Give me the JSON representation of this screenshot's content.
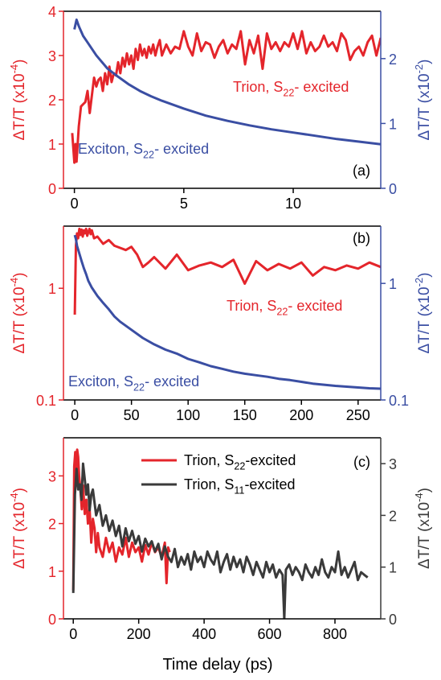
{
  "figure": {
    "xlabel": "Time delay (ps)",
    "colors": {
      "red": "#e4252b",
      "blue": "#3a4ea3",
      "dark": "#3a3a3a",
      "axis": "#000000"
    }
  },
  "chart_data": [
    {
      "type": "line",
      "panel_label": "(a)",
      "xlim": [
        -0.5,
        14
      ],
      "xticks": [
        0,
        5,
        10
      ],
      "xticklabels": [
        "0",
        "5",
        "10"
      ],
      "y_left": {
        "label": "ΔT/T (x10",
        "exp": "-4",
        "label_end": ")",
        "lim": [
          0,
          4
        ],
        "scale": "linear",
        "ticks": [
          0,
          1,
          2,
          3,
          4
        ],
        "ticklabels": [
          "0",
          "1",
          "2",
          "3",
          "4"
        ],
        "color": "red"
      },
      "y_right": {
        "label": "ΔT/T (x10",
        "exp": "-2",
        "label_end": ")",
        "lim": [
          0,
          2.73
        ],
        "scale": "linear",
        "ticks": [
          0,
          1,
          2
        ],
        "ticklabels": [
          "0",
          "1",
          "2"
        ],
        "color": "blue"
      },
      "annotations": [
        {
          "id": "trion",
          "text": "Trion, S",
          "sub": "22",
          "tail": "- excited",
          "color": "red"
        },
        {
          "id": "exciton",
          "text": "Exciton, S",
          "sub": "22",
          "tail": "- excited",
          "color": "blue"
        }
      ],
      "series": [
        {
          "name": "Trion, S22- excited",
          "axis": "left",
          "color": "red",
          "x": [
            -0.1,
            0.0,
            0.05,
            0.1,
            0.2,
            0.3,
            0.4,
            0.5,
            0.6,
            0.7,
            0.8,
            0.9,
            1.0,
            1.1,
            1.2,
            1.3,
            1.4,
            1.5,
            1.6,
            1.7,
            1.8,
            1.9,
            2.0,
            2.1,
            2.2,
            2.3,
            2.4,
            2.5,
            2.6,
            2.7,
            2.8,
            2.9,
            3.0,
            3.1,
            3.2,
            3.3,
            3.4,
            3.5,
            3.6,
            3.7,
            3.8,
            3.9,
            4.0,
            4.2,
            4.4,
            4.6,
            4.8,
            5.0,
            5.2,
            5.4,
            5.6,
            5.8,
            6.0,
            6.2,
            6.4,
            6.6,
            6.8,
            7.0,
            7.2,
            7.4,
            7.6,
            7.8,
            8.0,
            8.2,
            8.4,
            8.6,
            8.8,
            9.0,
            9.2,
            9.4,
            9.6,
            9.8,
            10.0,
            10.2,
            10.4,
            10.6,
            10.8,
            11.0,
            11.2,
            11.4,
            11.6,
            11.8,
            12.0,
            12.2,
            12.4,
            12.6,
            12.8,
            13.0,
            13.2,
            13.4,
            13.6,
            13.8,
            14.0
          ],
          "y": [
            1.25,
            0.58,
            1.0,
            0.6,
            1.4,
            1.85,
            1.9,
            1.95,
            2.2,
            1.7,
            2.1,
            2.5,
            2.3,
            2.45,
            2.5,
            2.2,
            2.6,
            2.35,
            2.75,
            2.4,
            2.6,
            2.55,
            2.85,
            2.6,
            2.95,
            2.75,
            3.05,
            2.8,
            3.0,
            2.7,
            3.15,
            2.9,
            3.25,
            3.0,
            3.15,
            2.95,
            3.2,
            3.05,
            3.25,
            3.0,
            3.2,
            3.35,
            3.0,
            3.25,
            3.05,
            3.2,
            3.15,
            3.55,
            3.2,
            3.0,
            3.5,
            3.1,
            3.3,
            3.25,
            2.95,
            3.2,
            3.35,
            3.05,
            3.25,
            3.15,
            3.55,
            2.8,
            3.35,
            3.05,
            3.45,
            2.7,
            3.5,
            3.15,
            3.3,
            3.1,
            3.3,
            3.2,
            3.5,
            3.15,
            3.55,
            3.05,
            3.3,
            3.1,
            3.2,
            3.45,
            3.2,
            3.3,
            3.1,
            3.5,
            3.35,
            2.9,
            3.1,
            3.2,
            3.0,
            3.3,
            3.45,
            3.0,
            3.4
          ]
        },
        {
          "name": "Exciton, S22- excited",
          "axis": "right",
          "color": "blue",
          "x": [
            0.0,
            0.1,
            0.2,
            0.4,
            0.6,
            0.8,
            1.0,
            1.5,
            2.0,
            2.5,
            3.0,
            3.5,
            4.0,
            5.0,
            6.0,
            7.0,
            8.0,
            9.0,
            10.0,
            11.0,
            12.0,
            13.0,
            14.0
          ],
          "y": [
            2.45,
            2.6,
            2.5,
            2.35,
            2.25,
            2.15,
            2.05,
            1.85,
            1.72,
            1.6,
            1.5,
            1.42,
            1.35,
            1.23,
            1.12,
            1.04,
            0.97,
            0.91,
            0.86,
            0.81,
            0.76,
            0.72,
            0.68
          ]
        }
      ]
    },
    {
      "type": "line",
      "panel_label": "(b)",
      "xlim": [
        -10,
        270
      ],
      "xticks": [
        0,
        50,
        100,
        150,
        200,
        250
      ],
      "xticklabels": [
        "0",
        "50",
        "100",
        "150",
        "200",
        "250"
      ],
      "y_left": {
        "label": "ΔT/T (x10",
        "exp": "-4",
        "label_end": ")",
        "lim": [
          0.1,
          3.6
        ],
        "scale": "log",
        "ticks": [
          0.1,
          1
        ],
        "ticklabels": [
          "0.1",
          "1"
        ],
        "color": "red"
      },
      "y_right": {
        "label": "ΔT/T (x10",
        "exp": "-2",
        "label_end": ")",
        "lim": [
          0.1,
          3.1
        ],
        "scale": "log",
        "ticks": [
          0.1,
          1
        ],
        "ticklabels": [
          "0.1",
          "1"
        ],
        "color": "blue"
      },
      "annotations": [
        {
          "id": "trion",
          "text": "Trion, S",
          "sub": "22",
          "tail": "- excited",
          "color": "red"
        },
        {
          "id": "exciton",
          "text": "Exciton, S",
          "sub": "22",
          "tail": "- excited",
          "color": "blue"
        }
      ],
      "series": [
        {
          "name": "Trion, S22- excited",
          "axis": "left",
          "color": "red",
          "x": [
            0,
            1,
            2,
            3,
            4,
            5,
            6,
            7,
            8,
            9,
            10,
            11,
            12,
            13,
            14,
            15,
            17,
            20,
            25,
            30,
            35,
            40,
            45,
            50,
            55,
            60,
            65,
            70,
            80,
            90,
            100,
            110,
            120,
            130,
            140,
            150,
            160,
            170,
            180,
            190,
            200,
            210,
            220,
            230,
            240,
            250,
            260,
            270
          ],
          "y": [
            0.58,
            2.4,
            3.1,
            2.8,
            3.4,
            3.0,
            3.35,
            2.9,
            3.3,
            3.1,
            3.4,
            2.95,
            3.2,
            3.4,
            3.05,
            3.3,
            2.8,
            2.9,
            2.5,
            2.7,
            2.4,
            2.3,
            2.2,
            2.35,
            2.0,
            1.55,
            1.7,
            1.9,
            1.5,
            2.0,
            1.45,
            1.6,
            1.7,
            1.55,
            1.8,
            1.1,
            1.75,
            1.45,
            1.65,
            1.5,
            1.7,
            1.3,
            1.55,
            1.45,
            1.6,
            1.5,
            1.7,
            1.55
          ]
        },
        {
          "name": "Exciton, S22- excited",
          "axis": "right",
          "color": "blue",
          "x": [
            0,
            1,
            2,
            4,
            6,
            8,
            10,
            12,
            15,
            20,
            25,
            30,
            35,
            40,
            50,
            60,
            70,
            80,
            90,
            100,
            110,
            120,
            130,
            140,
            150,
            160,
            170,
            180,
            190,
            200,
            210,
            220,
            230,
            240,
            250,
            260,
            270
          ],
          "y": [
            2.6,
            2.4,
            2.1,
            1.8,
            1.55,
            1.35,
            1.2,
            1.05,
            0.92,
            0.78,
            0.68,
            0.6,
            0.52,
            0.47,
            0.4,
            0.34,
            0.3,
            0.27,
            0.25,
            0.225,
            0.21,
            0.195,
            0.185,
            0.175,
            0.168,
            0.163,
            0.158,
            0.152,
            0.148,
            0.143,
            0.138,
            0.135,
            0.132,
            0.13,
            0.128,
            0.126,
            0.125
          ]
        }
      ]
    },
    {
      "type": "line",
      "panel_label": "(c)",
      "xlim": [
        -30,
        940
      ],
      "xticks": [
        0,
        200,
        400,
        600,
        800
      ],
      "xticklabels": [
        "0",
        "200",
        "400",
        "600",
        "800"
      ],
      "y_left": {
        "label": "ΔT/T (x10",
        "exp": "-4",
        "label_end": ")",
        "lim": [
          0,
          3.8
        ],
        "scale": "linear",
        "ticks": [
          0,
          1,
          2,
          3
        ],
        "ticklabels": [
          "0",
          "1",
          "2",
          "3"
        ],
        "color": "red"
      },
      "y_right": {
        "label": "ΔT/T (x10",
        "exp": "-4",
        "label_end": ")",
        "lim": [
          0,
          3.5
        ],
        "scale": "linear",
        "ticks": [
          0,
          1,
          2,
          3
        ],
        "ticklabels": [
          "0",
          "1",
          "2",
          "3"
        ],
        "color": "dark"
      },
      "legend": {
        "position": "top-right",
        "entries": [
          {
            "text": "Trion, S",
            "sub": "22",
            "tail": "-excited",
            "color": "red"
          },
          {
            "text": "Trion, S",
            "sub": "11",
            "tail": "-excited",
            "color": "dark"
          }
        ]
      },
      "series": [
        {
          "name": "Trion, S22-excited",
          "axis": "left",
          "color": "red",
          "x": [
            0,
            3,
            6,
            9,
            12,
            15,
            18,
            22,
            26,
            30,
            35,
            40,
            45,
            50,
            55,
            60,
            65,
            70,
            75,
            80,
            90,
            100,
            110,
            120,
            130,
            140,
            150,
            160,
            170,
            180,
            190,
            200,
            210,
            220,
            230,
            240,
            250,
            260,
            270,
            280,
            285,
            290,
            295
          ],
          "y": [
            0.6,
            3.2,
            3.5,
            2.9,
            3.55,
            3.4,
            3.0,
            2.7,
            2.3,
            2.8,
            2.2,
            2.5,
            2.0,
            2.3,
            1.6,
            2.1,
            1.9,
            1.4,
            1.8,
            1.5,
            1.3,
            1.7,
            1.4,
            1.6,
            1.2,
            1.5,
            1.35,
            1.7,
            1.3,
            1.6,
            1.4,
            1.5,
            1.2,
            1.55,
            1.35,
            1.6,
            1.4,
            1.5,
            1.3,
            1.6,
            0.75,
            1.5,
            1.4
          ]
        },
        {
          "name": "Trion, S11-excited",
          "axis": "right",
          "color": "dark",
          "x": [
            0,
            5,
            10,
            15,
            20,
            25,
            30,
            35,
            40,
            45,
            50,
            55,
            60,
            70,
            80,
            90,
            100,
            110,
            120,
            130,
            140,
            150,
            160,
            170,
            180,
            190,
            200,
            210,
            220,
            230,
            240,
            250,
            260,
            270,
            280,
            290,
            300,
            310,
            320,
            330,
            340,
            350,
            360,
            370,
            380,
            390,
            400,
            410,
            420,
            430,
            440,
            450,
            460,
            470,
            480,
            490,
            500,
            510,
            520,
            530,
            540,
            550,
            560,
            570,
            580,
            590,
            600,
            610,
            620,
            630,
            640,
            645,
            650,
            660,
            670,
            680,
            690,
            700,
            710,
            720,
            730,
            740,
            750,
            760,
            770,
            780,
            790,
            800,
            810,
            820,
            830,
            840,
            850,
            860,
            870,
            880,
            890,
            900
          ],
          "y": [
            0.5,
            2.4,
            2.9,
            2.5,
            2.6,
            2.3,
            3.0,
            2.7,
            2.4,
            2.6,
            2.1,
            2.4,
            2.5,
            2.0,
            2.2,
            1.8,
            2.0,
            1.7,
            1.9,
            1.6,
            1.8,
            1.4,
            1.75,
            1.5,
            1.7,
            1.45,
            1.6,
            1.3,
            1.55,
            1.4,
            1.5,
            1.3,
            1.45,
            1.15,
            1.4,
            1.2,
            1.1,
            1.35,
            1.0,
            1.2,
            1.05,
            1.25,
            0.95,
            1.3,
            1.1,
            1.2,
            1.0,
            1.3,
            1.15,
            1.05,
            1.3,
            0.9,
            1.1,
            1.25,
            0.95,
            1.2,
            1.0,
            1.15,
            0.9,
            1.2,
            1.05,
            0.85,
            1.1,
            0.95,
            0.8,
            1.1,
            0.9,
            1.05,
            0.8,
            0.95,
            0.85,
            0.0,
            0.95,
            1.05,
            0.85,
            1.0,
            0.9,
            0.75,
            1.05,
            0.9,
            0.8,
            1.0,
            0.85,
            1.15,
            0.9,
            0.8,
            1.0,
            0.9,
            1.3,
            0.85,
            1.0,
            0.8,
            0.95,
            1.1,
            0.75,
            0.9,
            0.85,
            0.8
          ]
        }
      ]
    }
  ]
}
